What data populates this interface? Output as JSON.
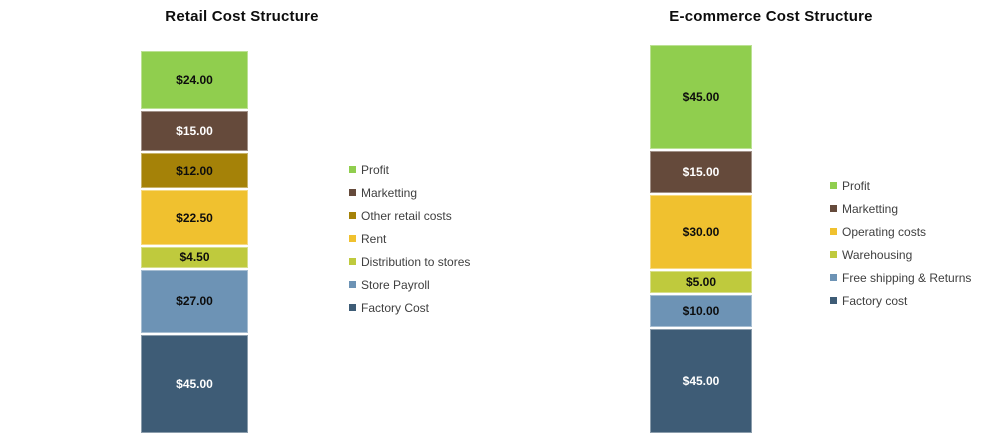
{
  "page": {
    "background": "#FFFFFF"
  },
  "chart_data": [
    {
      "type": "bar",
      "subtype": "stacked_column",
      "title": "Retail Cost Structure",
      "currency": "$",
      "total": 150,
      "segment_order": "top_to_bottom",
      "legend_position": "right",
      "segments": [
        {
          "name": "Profit",
          "value": 24,
          "display": "$24.00",
          "color": "#90CE4E",
          "label_color": "#0D0D0D"
        },
        {
          "name": "Marketting",
          "value": 15,
          "display": "$15.00",
          "color": "#654A3B",
          "label_color": "#FFFFFF"
        },
        {
          "name": "Other retail costs",
          "value": 12,
          "display": "$12.00",
          "color": "#A58208",
          "label_color": "#0D0D0D"
        },
        {
          "name": "Rent",
          "value": 22.5,
          "display": "$22.50",
          "color": "#F0C12F",
          "label_color": "#0D0D0D"
        },
        {
          "name": "Distribution to stores",
          "value": 4.5,
          "display": "$4.50",
          "color": "#BFCA3D",
          "label_color": "#0D0D0D"
        },
        {
          "name": "Store Payroll",
          "value": 27,
          "display": "$27.00",
          "color": "#6D93B5",
          "label_color": "#0D0D0D"
        },
        {
          "name": "Factory Cost",
          "value": 45,
          "display": "$45.00",
          "color": "#3E5C76",
          "label_color": "#FFFFFF"
        }
      ]
    },
    {
      "type": "bar",
      "subtype": "stacked_column",
      "title": "E-commerce Cost Structure",
      "currency": "$",
      "total": 150,
      "segment_order": "top_to_bottom",
      "legend_position": "right",
      "segments": [
        {
          "name": "Profit",
          "value": 45,
          "display": "$45.00",
          "color": "#90CE4E",
          "label_color": "#0D0D0D"
        },
        {
          "name": "Marketting",
          "value": 15,
          "display": "$15.00",
          "color": "#654A3B",
          "label_color": "#FFFFFF"
        },
        {
          "name": "Operating costs",
          "value": 30,
          "display": "$30.00",
          "color": "#F0C12F",
          "label_color": "#0D0D0D"
        },
        {
          "name": "Warehousing",
          "value": 5,
          "display": "$5.00",
          "color": "#BFCA3D",
          "label_color": "#0D0D0D"
        },
        {
          "name": "Free shipping & Returns",
          "value": 10,
          "display": "$10.00",
          "color": "#6D93B5",
          "label_color": "#0D0D0D"
        },
        {
          "name": "Factory cost",
          "value": 45,
          "display": "$45.00",
          "color": "#3E5C76",
          "label_color": "#FFFFFF"
        }
      ]
    }
  ]
}
